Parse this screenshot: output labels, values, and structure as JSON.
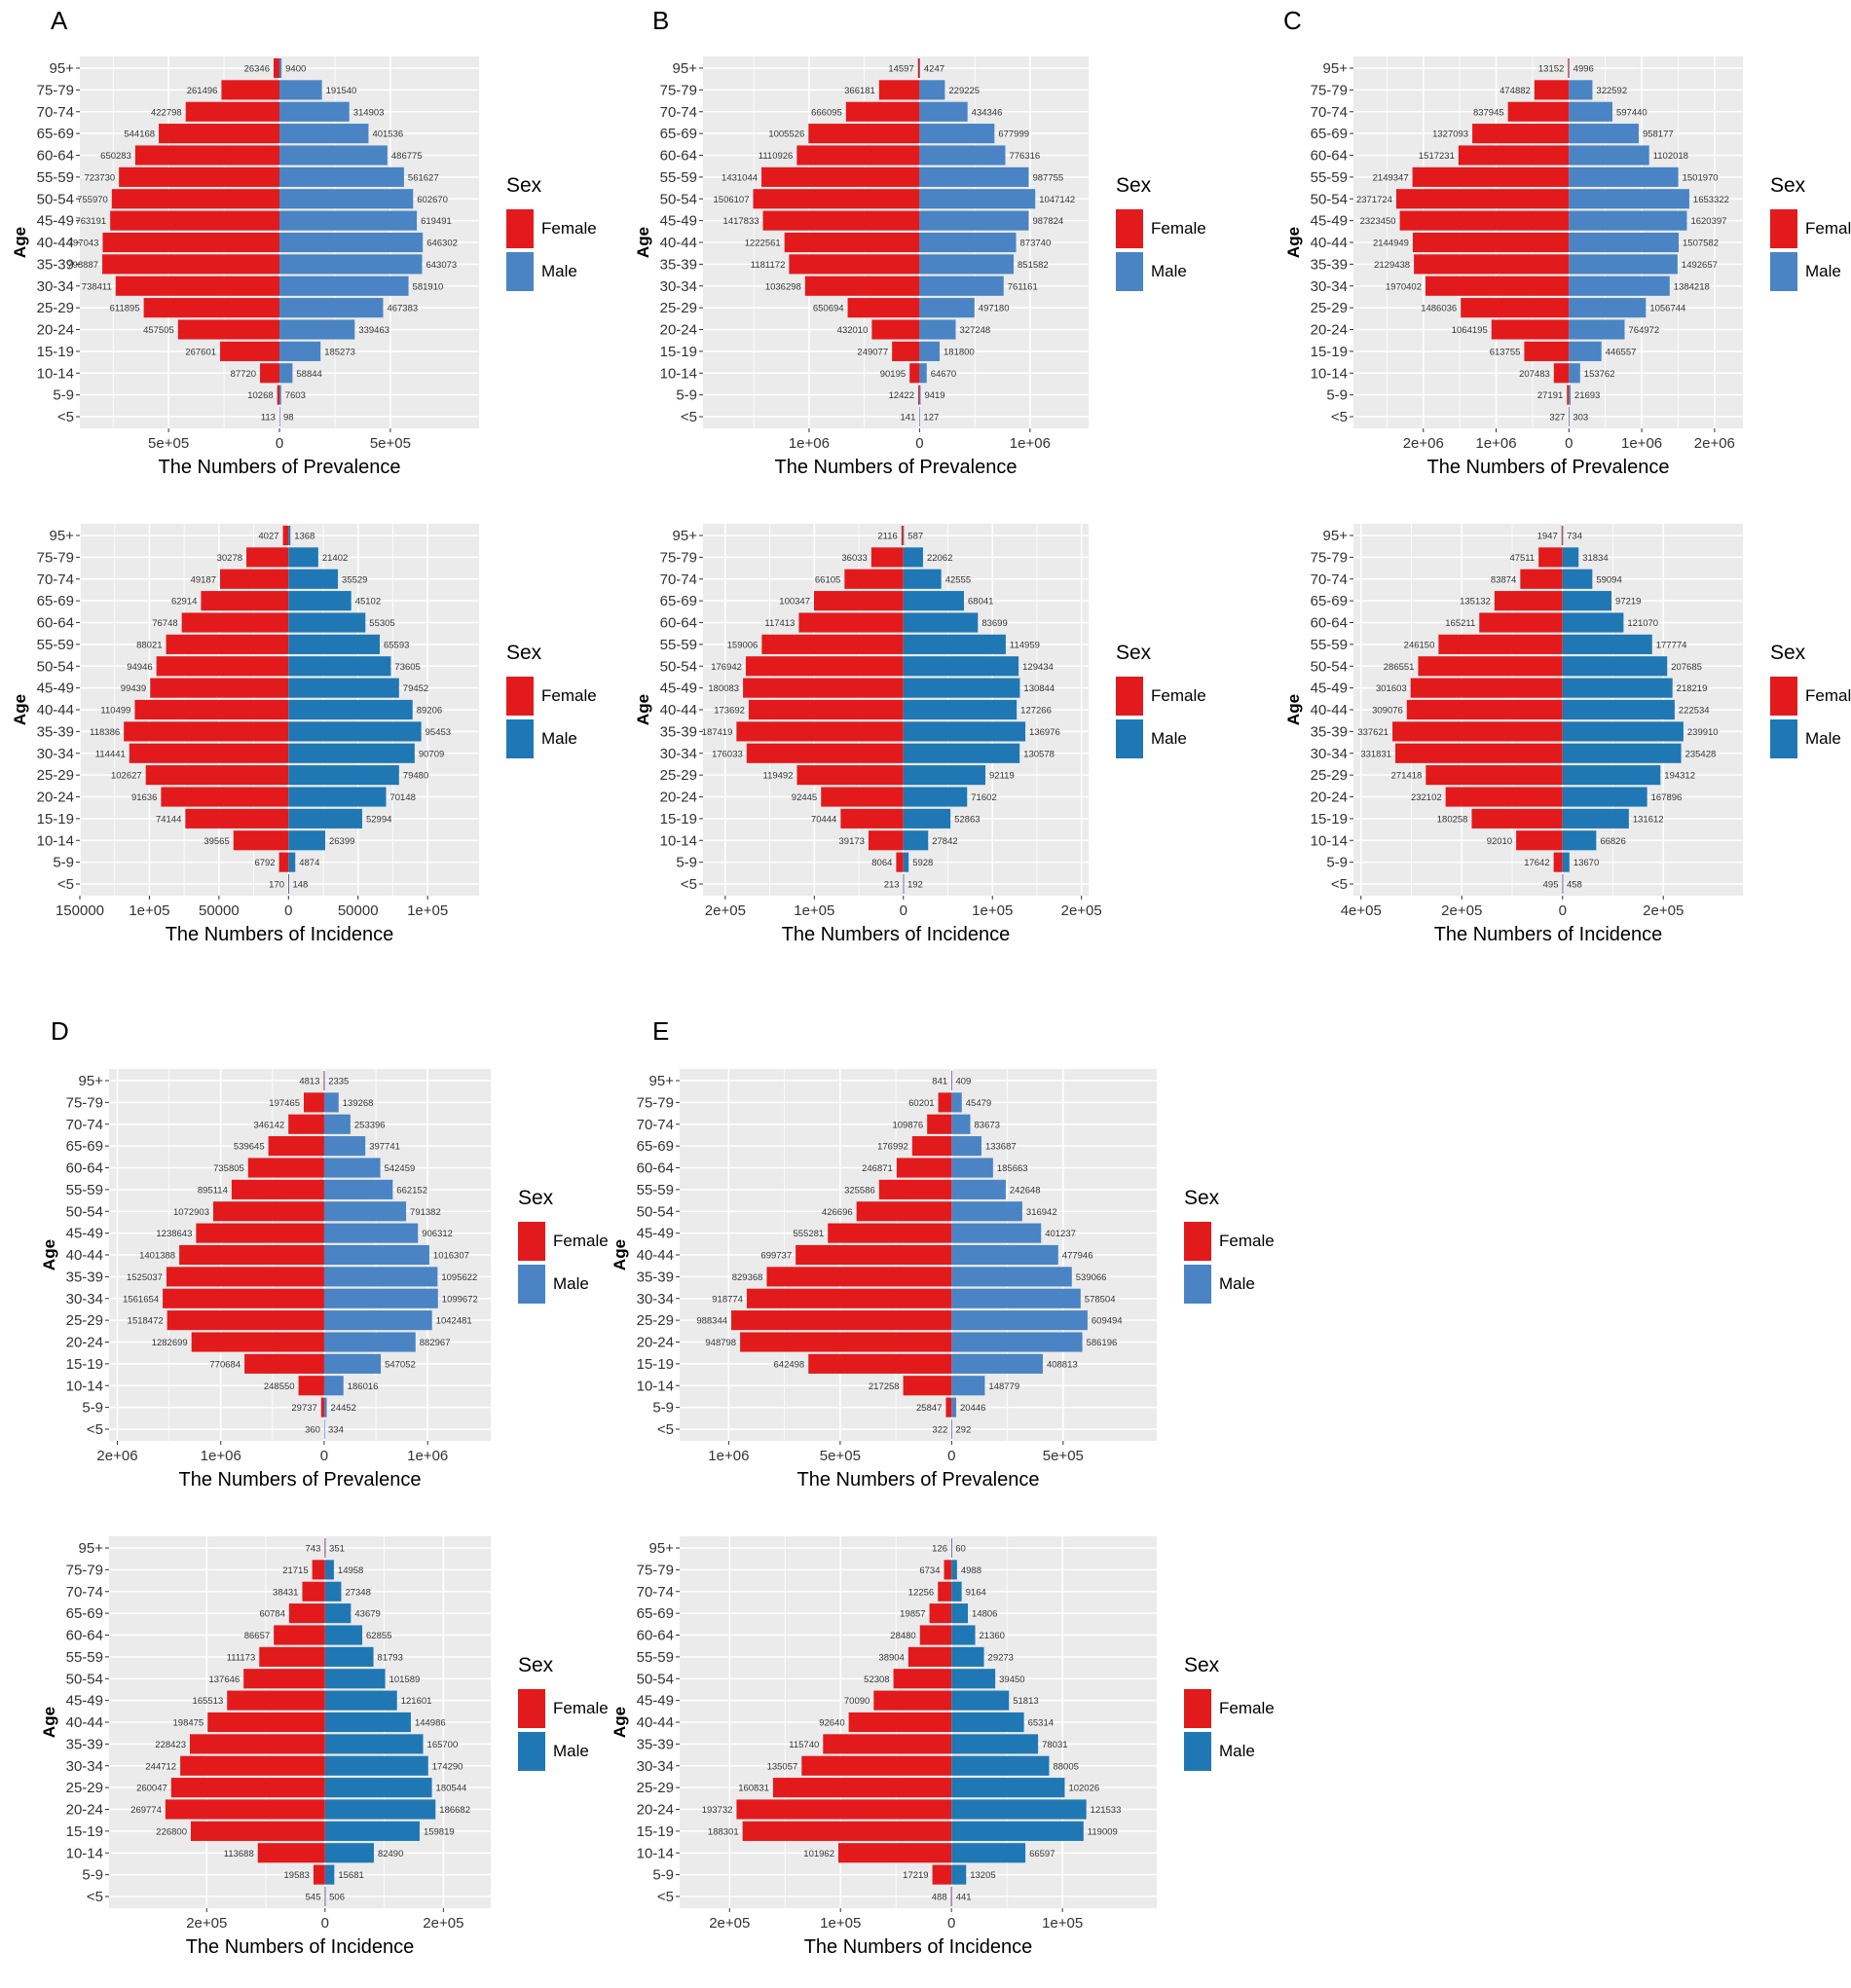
{
  "figure": {
    "panel_letters": [
      "A",
      "B",
      "C",
      "D",
      "E"
    ],
    "age_axis_label": "Age",
    "legend_title": "Sex",
    "female_label": "Female",
    "male_label": "Male"
  },
  "colors": {
    "female": "#e31a1c",
    "male_prevalence": "#4a84c4",
    "male_incidence": "#1f78b4",
    "panel_background": "#ebebeb",
    "grid": "#ffffff"
  },
  "chart_data": [
    {
      "type": "bar",
      "panel": "A",
      "metric": "prevalence",
      "title": "",
      "xlabel": "The Numbers of Prevalence",
      "ylabel": "Age",
      "categories": [
        "95+",
        "75-79",
        "70-74",
        "65-69",
        "60-64",
        "55-59",
        "50-54",
        "45-49",
        "40-44",
        "35-39",
        "30-34",
        "25-29",
        "20-24",
        "15-19",
        "10-14",
        "5-9",
        "<5"
      ],
      "series": [
        {
          "name": "Female",
          "values": [
            26346,
            261496,
            422798,
            544168,
            650283,
            723730,
            755970,
            763191,
            797043,
            798887,
            738411,
            611895,
            457505,
            267601,
            87720,
            10268,
            113
          ]
        },
        {
          "name": "Male",
          "values": [
            9400,
            191540,
            314903,
            401536,
            486775,
            561627,
            602670,
            619491,
            646302,
            643073,
            581910,
            467383,
            339463,
            185273,
            58844,
            7603,
            98
          ]
        }
      ],
      "xlim": [
        -900000,
        900000
      ],
      "xticks": [
        {
          "value": -1000000,
          "label": "1e+06"
        },
        {
          "value": -500000,
          "label": "5e+05"
        },
        {
          "value": 0,
          "label": "0"
        },
        {
          "value": 500000,
          "label": "5e+05"
        }
      ],
      "legend": "right"
    },
    {
      "type": "bar",
      "panel": "B",
      "metric": "prevalence",
      "title": "",
      "xlabel": "The Numbers of Prevalence",
      "ylabel": "Age",
      "categories": [
        "95+",
        "75-79",
        "70-74",
        "65-69",
        "60-64",
        "55-59",
        "50-54",
        "45-49",
        "40-44",
        "35-39",
        "30-34",
        "25-29",
        "20-24",
        "15-19",
        "10-14",
        "5-9",
        "<5"
      ],
      "series": [
        {
          "name": "Female",
          "values": [
            14597,
            366181,
            666095,
            1005526,
            1110926,
            1431044,
            1506107,
            1417833,
            1222561,
            1181172,
            1036298,
            650694,
            432010,
            249077,
            90195,
            12422,
            141
          ]
        },
        {
          "name": "Male",
          "values": [
            4247,
            229225,
            434346,
            677999,
            776316,
            987755,
            1047142,
            987824,
            873740,
            851582,
            761161,
            497180,
            327248,
            181800,
            64670,
            9419,
            127
          ]
        }
      ],
      "xlim": [
        -1960000,
        1530000
      ],
      "xticks": [
        {
          "value": -2000000,
          "label": "2e+06"
        },
        {
          "value": -1000000,
          "label": "1e+06"
        },
        {
          "value": 0,
          "label": "0"
        },
        {
          "value": 1000000,
          "label": "1e+06"
        }
      ],
      "legend": "right"
    },
    {
      "type": "bar",
      "panel": "C",
      "metric": "prevalence",
      "title": "",
      "xlabel": "The Numbers of Prevalence",
      "ylabel": "Age",
      "categories": [
        "95+",
        "75-79",
        "70-74",
        "65-69",
        "60-64",
        "55-59",
        "50-54",
        "45-49",
        "40-44",
        "35-39",
        "30-34",
        "25-29",
        "20-24",
        "15-19",
        "10-14",
        "5-9",
        "<5"
      ],
      "series": [
        {
          "name": "Female",
          "values": [
            13152,
            474882,
            837945,
            1327093,
            1517231,
            2149347,
            2371724,
            2323450,
            2144949,
            2129438,
            1970402,
            1486036,
            1064195,
            613755,
            207483,
            27191,
            327
          ]
        },
        {
          "name": "Male",
          "values": [
            4996,
            322592,
            597440,
            958177,
            1102018,
            1501970,
            1653322,
            1620397,
            1507582,
            1492657,
            1384218,
            1056744,
            764972,
            446557,
            153762,
            21693,
            303
          ]
        }
      ],
      "xlim": [
        -2960000,
        2390000
      ],
      "xticks": [
        {
          "value": -3000000,
          "label": "3e+06"
        },
        {
          "value": -2000000,
          "label": "2e+06"
        },
        {
          "value": -1000000,
          "label": "1e+06"
        },
        {
          "value": 0,
          "label": "0"
        },
        {
          "value": 1000000,
          "label": "1e+06"
        },
        {
          "value": 2000000,
          "label": "2e+06"
        }
      ],
      "legend": "right"
    },
    {
      "type": "bar",
      "panel": "A",
      "metric": "incidence",
      "title": "",
      "xlabel": "The Numbers of Incidence",
      "ylabel": "Age",
      "categories": [
        "95+",
        "75-79",
        "70-74",
        "65-69",
        "60-64",
        "55-59",
        "50-54",
        "45-49",
        "40-44",
        "35-39",
        "30-34",
        "25-29",
        "20-24",
        "15-19",
        "10-14",
        "5-9",
        "<5"
      ],
      "series": [
        {
          "name": "Female",
          "values": [
            4027,
            30278,
            49187,
            62914,
            76748,
            88021,
            94946,
            99439,
            110499,
            118386,
            114441,
            102627,
            91636,
            74144,
            39565,
            6792,
            170
          ]
        },
        {
          "name": "Male",
          "values": [
            1368,
            21402,
            35529,
            45102,
            55305,
            65593,
            73605,
            79452,
            89206,
            95453,
            90709,
            79480,
            70148,
            52994,
            26399,
            4874,
            148
          ]
        }
      ],
      "xlim": [
        -150000,
        137000
      ],
      "xticks": [
        {
          "value": -150000,
          "label": "150000"
        },
        {
          "value": -100000,
          "label": "1e+05"
        },
        {
          "value": -50000,
          "label": "50000"
        },
        {
          "value": 0,
          "label": "0"
        },
        {
          "value": 50000,
          "label": "50000"
        },
        {
          "value": 100000,
          "label": "1e+05"
        }
      ],
      "legend": "right"
    },
    {
      "type": "bar",
      "panel": "B",
      "metric": "incidence",
      "title": "",
      "xlabel": "The Numbers of Incidence",
      "ylabel": "Age",
      "categories": [
        "95+",
        "75-79",
        "70-74",
        "65-69",
        "60-64",
        "55-59",
        "50-54",
        "45-49",
        "40-44",
        "35-39",
        "30-34",
        "25-29",
        "20-24",
        "15-19",
        "10-14",
        "5-9",
        "<5"
      ],
      "series": [
        {
          "name": "Female",
          "values": [
            2116,
            36033,
            66105,
            100347,
            117413,
            159006,
            176942,
            180083,
            173692,
            187419,
            176033,
            119492,
            92445,
            70444,
            39173,
            8064,
            213
          ]
        },
        {
          "name": "Male",
          "values": [
            587,
            22062,
            42555,
            68041,
            83699,
            114959,
            129434,
            130844,
            127266,
            136976,
            130578,
            92119,
            71602,
            52863,
            27842,
            5928,
            192
          ]
        }
      ],
      "xlim": [
        -225000,
        208000
      ],
      "xticks": [
        {
          "value": -200000,
          "label": "2e+05"
        },
        {
          "value": -100000,
          "label": "1e+05"
        },
        {
          "value": 0,
          "label": "0"
        },
        {
          "value": 100000,
          "label": "1e+05"
        },
        {
          "value": 200000,
          "label": "2e+05"
        }
      ],
      "legend": "right"
    },
    {
      "type": "bar",
      "panel": "C",
      "metric": "incidence",
      "title": "",
      "xlabel": "The Numbers of Incidence",
      "ylabel": "Age",
      "categories": [
        "95+",
        "75-79",
        "70-74",
        "65-69",
        "60-64",
        "55-59",
        "50-54",
        "45-49",
        "40-44",
        "35-39",
        "30-34",
        "25-29",
        "20-24",
        "15-19",
        "10-14",
        "5-9",
        "<5"
      ],
      "series": [
        {
          "name": "Female",
          "values": [
            1947,
            47511,
            83874,
            135132,
            165211,
            246150,
            286551,
            301603,
            309076,
            337621,
            331831,
            271418,
            232102,
            180258,
            92010,
            17642,
            495
          ]
        },
        {
          "name": "Male",
          "values": [
            734,
            31834,
            59094,
            97219,
            121070,
            177774,
            207685,
            218219,
            222534,
            239910,
            235428,
            194312,
            167896,
            131612,
            66826,
            13670,
            458
          ]
        }
      ],
      "xlim": [
        -415000,
        358000
      ],
      "xticks": [
        {
          "value": -400000,
          "label": "4e+05"
        },
        {
          "value": -200000,
          "label": "2e+05"
        },
        {
          "value": 0,
          "label": "0"
        },
        {
          "value": 200000,
          "label": "2e+05"
        }
      ],
      "legend": "right"
    },
    {
      "type": "bar",
      "panel": "D",
      "metric": "prevalence",
      "title": "",
      "xlabel": "The Numbers of Prevalence",
      "ylabel": "Age",
      "categories": [
        "95+",
        "75-79",
        "70-74",
        "65-69",
        "60-64",
        "55-59",
        "50-54",
        "45-49",
        "40-44",
        "35-39",
        "30-34",
        "25-29",
        "20-24",
        "15-19",
        "10-14",
        "5-9",
        "<5"
      ],
      "series": [
        {
          "name": "Female",
          "values": [
            4813,
            197465,
            346142,
            539645,
            735805,
            895114,
            1072903,
            1238643,
            1401388,
            1525037,
            1561654,
            1518472,
            1282699,
            770684,
            248550,
            29737,
            360
          ]
        },
        {
          "name": "Male",
          "values": [
            2335,
            139268,
            253396,
            397741,
            542459,
            662152,
            791382,
            906312,
            1016307,
            1095622,
            1099672,
            1042481,
            882967,
            547052,
            186016,
            24452,
            334
          ]
        }
      ],
      "xlim": [
        -2080000,
        1610000
      ],
      "xticks": [
        {
          "value": -2000000,
          "label": "2e+06"
        },
        {
          "value": -1000000,
          "label": "1e+06"
        },
        {
          "value": 0,
          "label": "0"
        },
        {
          "value": 1000000,
          "label": "1e+06"
        }
      ],
      "legend": "right"
    },
    {
      "type": "bar",
      "panel": "E",
      "metric": "prevalence",
      "title": "",
      "xlabel": "The Numbers of Prevalence",
      "ylabel": "Age",
      "categories": [
        "95+",
        "75-79",
        "70-74",
        "65-69",
        "60-64",
        "55-59",
        "50-54",
        "45-49",
        "40-44",
        "35-39",
        "30-34",
        "25-29",
        "20-24",
        "15-19",
        "10-14",
        "5-9",
        "<5"
      ],
      "series": [
        {
          "name": "Female",
          "values": [
            841,
            60201,
            109876,
            176992,
            246871,
            325586,
            426696,
            555281,
            699737,
            829368,
            918774,
            988344,
            948798,
            642498,
            217258,
            25847,
            322
          ]
        },
        {
          "name": "Male",
          "values": [
            409,
            45479,
            83673,
            133687,
            185663,
            242648,
            316942,
            401237,
            477946,
            539066,
            578504,
            609494,
            586196,
            408813,
            148779,
            20446,
            292
          ]
        }
      ],
      "xlim": [
        -1220000,
        920000
      ],
      "xticks": [
        {
          "value": -1000000,
          "label": "1e+06"
        },
        {
          "value": -500000,
          "label": "5e+05"
        },
        {
          "value": 0,
          "label": "0"
        },
        {
          "value": 500000,
          "label": "5e+05"
        }
      ],
      "legend": "right"
    },
    {
      "type": "bar",
      "panel": "D",
      "metric": "incidence",
      "title": "",
      "xlabel": "The Numbers of Incidence",
      "ylabel": "Age",
      "categories": [
        "95+",
        "75-79",
        "70-74",
        "65-69",
        "60-64",
        "55-59",
        "50-54",
        "45-49",
        "40-44",
        "35-39",
        "30-34",
        "25-29",
        "20-24",
        "15-19",
        "10-14",
        "5-9",
        "<5"
      ],
      "series": [
        {
          "name": "Female",
          "values": [
            743,
            21715,
            38431,
            60784,
            86657,
            111173,
            137646,
            165513,
            198475,
            228423,
            244712,
            260047,
            269774,
            226800,
            113688,
            19583,
            545
          ]
        },
        {
          "name": "Male",
          "values": [
            351,
            14958,
            27348,
            43679,
            62855,
            81793,
            101589,
            121601,
            144986,
            165700,
            174290,
            180544,
            186682,
            159819,
            82490,
            15681,
            506
          ]
        }
      ],
      "xlim": [
        -365000,
        280000
      ],
      "xticks": [
        {
          "value": -200000,
          "label": "2e+05"
        },
        {
          "value": 0,
          "label": "0"
        },
        {
          "value": 200000,
          "label": "2e+05"
        }
      ],
      "legend": "right"
    },
    {
      "type": "bar",
      "panel": "E",
      "metric": "incidence",
      "title": "",
      "xlabel": "The Numbers of Incidence",
      "ylabel": "Age",
      "categories": [
        "95+",
        "75-79",
        "70-74",
        "65-69",
        "60-64",
        "55-59",
        "50-54",
        "45-49",
        "40-44",
        "35-39",
        "30-34",
        "25-29",
        "20-24",
        "15-19",
        "10-14",
        "5-9",
        "<5"
      ],
      "series": [
        {
          "name": "Female",
          "values": [
            126,
            6734,
            12256,
            19857,
            28480,
            38904,
            52308,
            70090,
            92640,
            115740,
            135057,
            160831,
            193732,
            188301,
            101962,
            17219,
            488
          ]
        },
        {
          "name": "Male",
          "values": [
            60,
            4988,
            9164,
            14806,
            21360,
            29273,
            39450,
            51813,
            65314,
            78031,
            88005,
            102026,
            121533,
            119009,
            66597,
            13205,
            441
          ]
        }
      ],
      "xlim": [
        -245000,
        185000
      ],
      "xticks": [
        {
          "value": -200000,
          "label": "2e+05"
        },
        {
          "value": -100000,
          "label": "1e+05"
        },
        {
          "value": 0,
          "label": "0"
        },
        {
          "value": 100000,
          "label": "1e+05"
        }
      ],
      "legend": "right"
    }
  ]
}
